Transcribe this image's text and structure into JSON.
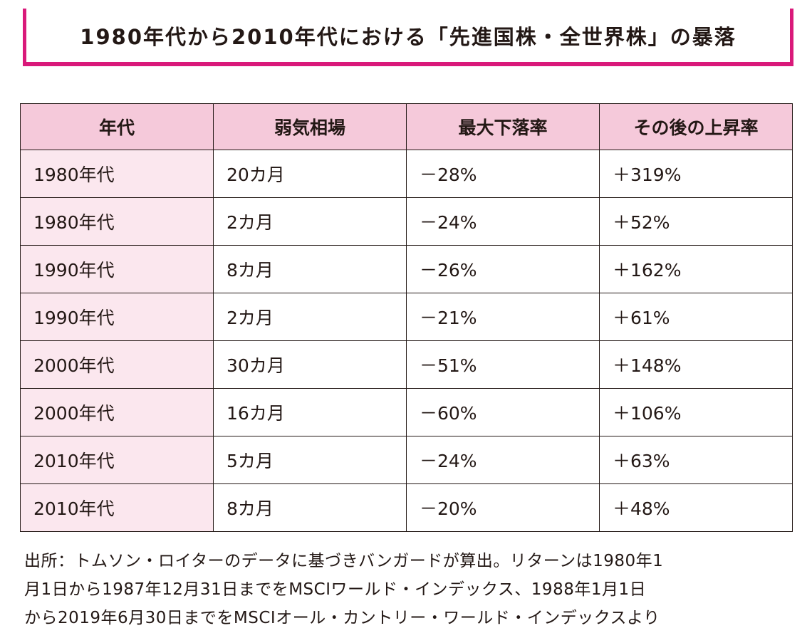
{
  "title": "1980年代から2010年代における「先進国株・全世界株」の暴落",
  "accent_color": "#d9197a",
  "header_color": "#f5c9da",
  "table": {
    "headers": [
      "年代",
      "弱気相場",
      "最大下落率",
      "その後の上昇率"
    ],
    "rows": [
      [
        "1980年代",
        "20カ月",
        "－28%",
        "＋319%"
      ],
      [
        "1980年代",
        "2カ月",
        "－24%",
        "＋52%"
      ],
      [
        "1990年代",
        "8カ月",
        "－26%",
        "＋162%"
      ],
      [
        "1990年代",
        "2カ月",
        "－21%",
        "＋61%"
      ],
      [
        "2000年代",
        "30カ月",
        "－51%",
        "＋148%"
      ],
      [
        "2000年代",
        "16カ月",
        "－60%",
        "＋106%"
      ],
      [
        "2010年代",
        "5カ月",
        "－24%",
        "＋63%"
      ],
      [
        "2010年代",
        "8カ月",
        "－20%",
        "＋48%"
      ]
    ]
  },
  "footer": {
    "lines": [
      "出所：トムソン・ロイターのデータに基づきバンガードが算出。リターンは1980年1",
      "月1日から1987年12月31日までをMSCIワールド・インデックス、1988年1月1日",
      "から2019年6月30日までをMSCIオール・カントリー・ワールド・インデックスより"
    ]
  }
}
